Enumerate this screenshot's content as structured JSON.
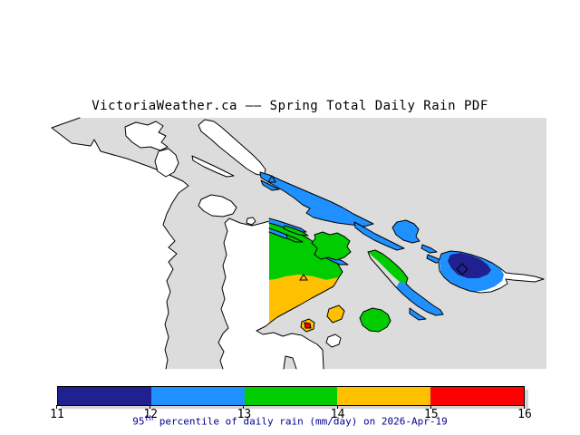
{
  "title": "VictoriaWeather.ca —— Spring Total Daily Rain PDF",
  "map": {
    "sea_color": "#DCDCDC",
    "land_color": "#FFFFFF",
    "outline_color": "#000000",
    "value_colors": {
      "rain_11_to_12": "#202090",
      "rain_12_to_13": "#1E90FF",
      "rain_13_to_14": "#00CC00",
      "rain_14_to_15": "#FFC000",
      "rain_15_to_16": "#FF0000"
    },
    "markers": [
      {
        "shape": "diamond",
        "region": "rain_11_to_12"
      },
      {
        "shape": "triangle",
        "region": "rain_12_to_13"
      },
      {
        "shape": "triangle",
        "region": "rain_13_to_14"
      }
    ]
  },
  "colorbar": {
    "tick_labels": [
      "11",
      "12",
      "13",
      "14",
      "15",
      "16"
    ],
    "segment_colors": [
      "#202090",
      "#1E90FF",
      "#00CC00",
      "#FFC000",
      "#FF0000"
    ],
    "caption": {
      "value": "95",
      "sup": "th",
      "rest": " percentile of daily rain (mm/day) on 2026-Apr-19"
    },
    "caption_color": "#000090",
    "units": "mm/day",
    "date": "2026-Apr-19"
  }
}
